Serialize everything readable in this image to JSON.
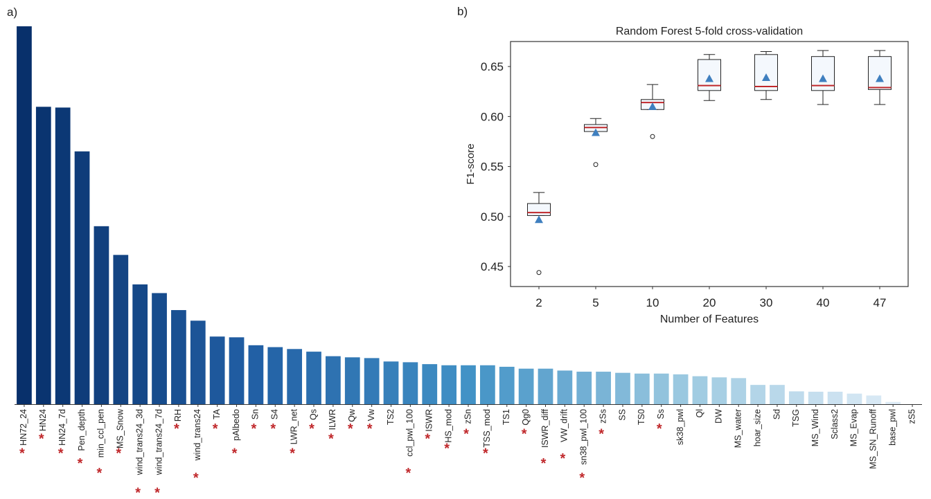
{
  "panel_labels": {
    "a": "a)",
    "b": "b)"
  },
  "chart_data": [
    {
      "type": "bar",
      "title": "",
      "xlabel": "",
      "ylabel": "",
      "ylim": [
        0,
        1.0
      ],
      "colormap": "Blues (dark to light, descending importance)",
      "significance_marker": "*",
      "significance_color": "#c0282b",
      "categories": [
        "HN72_24",
        "HN24",
        "HN24_7d",
        "Pen_depth",
        "min_ccl_pen",
        "MS_Snow",
        "wind_trans24_3d",
        "wind_trans24_7d",
        "RH",
        "wind_trans24",
        "TA",
        "pAlbedo",
        "Sn",
        "S4",
        "LWR_net",
        "Qs",
        "ILWR",
        "Qw",
        "Vw",
        "TS2",
        "ccl_pwl_100",
        "ISWR",
        "HS_mod",
        "zSn",
        "TSS_mod",
        "TS1",
        "Qg0",
        "ISWR_diff",
        "VW_drift",
        "sn38_pwl_100",
        "zSs",
        "SS",
        "TS0",
        "Ss",
        "sk38_pwl",
        "Ql",
        "DW",
        "MS_water",
        "hoar_size",
        "Sd",
        "TSG",
        "MS_Wind",
        "Sclass2",
        "MS_Evap",
        "MS_SN_Runoff",
        "base_pwl",
        "zS5"
      ],
      "values": [
        1.0,
        0.787,
        0.785,
        0.669,
        0.471,
        0.395,
        0.317,
        0.294,
        0.249,
        0.221,
        0.179,
        0.177,
        0.156,
        0.151,
        0.146,
        0.139,
        0.127,
        0.124,
        0.122,
        0.113,
        0.111,
        0.106,
        0.103,
        0.103,
        0.103,
        0.099,
        0.094,
        0.094,
        0.089,
        0.086,
        0.086,
        0.083,
        0.081,
        0.081,
        0.079,
        0.074,
        0.071,
        0.069,
        0.051,
        0.051,
        0.034,
        0.033,
        0.033,
        0.028,
        0.023,
        0.006,
        0.0
      ],
      "significant": [
        true,
        true,
        true,
        true,
        true,
        true,
        true,
        true,
        true,
        true,
        true,
        true,
        true,
        true,
        true,
        true,
        true,
        true,
        true,
        false,
        true,
        true,
        true,
        true,
        true,
        false,
        true,
        true,
        true,
        true,
        true,
        false,
        false,
        true,
        false,
        false,
        false,
        false,
        false,
        false,
        false,
        false,
        false,
        false,
        false,
        false,
        false
      ]
    },
    {
      "type": "box",
      "title": "Random Forest 5-fold cross-validation",
      "xlabel": "Number of Features",
      "ylabel": "F1-score",
      "ylim": [
        0.43,
        0.675
      ],
      "yticks": [
        0.45,
        0.5,
        0.55,
        0.6,
        0.65
      ],
      "ytick_labels": [
        "0.45",
        "0.50",
        "0.55",
        "0.60",
        "0.65"
      ],
      "categories": [
        "2",
        "5",
        "10",
        "20",
        "30",
        "40",
        "47"
      ],
      "box_fill": "#f4f8fd",
      "median_color": "#c0282b",
      "mean_color": "#3f7fbf",
      "boxes": [
        {
          "q1": 0.501,
          "median": 0.504,
          "q3": 0.513,
          "whislo": 0.501,
          "whishi": 0.524,
          "mean": 0.497,
          "fliers": [
            0.444
          ]
        },
        {
          "q1": 0.585,
          "median": 0.589,
          "q3": 0.592,
          "whislo": 0.585,
          "whishi": 0.598,
          "mean": 0.584,
          "fliers": [
            0.552
          ]
        },
        {
          "q1": 0.607,
          "median": 0.614,
          "q3": 0.617,
          "whislo": 0.607,
          "whishi": 0.632,
          "mean": 0.61,
          "fliers": [
            0.58
          ]
        },
        {
          "q1": 0.626,
          "median": 0.631,
          "q3": 0.657,
          "whislo": 0.616,
          "whishi": 0.662,
          "mean": 0.638,
          "fliers": []
        },
        {
          "q1": 0.626,
          "median": 0.63,
          "q3": 0.662,
          "whislo": 0.617,
          "whishi": 0.665,
          "mean": 0.639,
          "fliers": []
        },
        {
          "q1": 0.626,
          "median": 0.631,
          "q3": 0.66,
          "whislo": 0.612,
          "whishi": 0.666,
          "mean": 0.638,
          "fliers": []
        },
        {
          "q1": 0.627,
          "median": 0.629,
          "q3": 0.66,
          "whislo": 0.612,
          "whishi": 0.666,
          "mean": 0.638,
          "fliers": []
        }
      ]
    }
  ]
}
